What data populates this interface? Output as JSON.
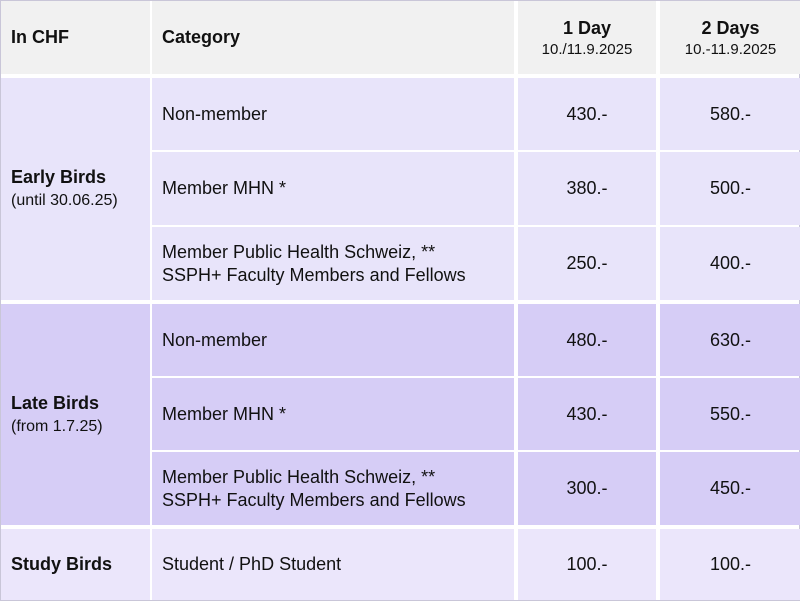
{
  "header": {
    "currency": "In CHF",
    "category": "Category",
    "day1_label": "1 Day",
    "day1_dates": "10./11.9.2025",
    "day2_label": "2 Days",
    "day2_dates": "10.-11.9.2025"
  },
  "groups": {
    "early": {
      "label": "Early Birds",
      "note": "(until 30.06.25)",
      "rows": [
        {
          "category": [
            "Non-member"
          ],
          "day1": "430.-",
          "day2": "580.-"
        },
        {
          "category": [
            "Member MHN *"
          ],
          "day1": "380.-",
          "day2": "500.-"
        },
        {
          "category": [
            "Member Public Health Schweiz, **",
            "SSPH+ Faculty Members and Fellows"
          ],
          "day1": "250.-",
          "day2": "400.-"
        }
      ]
    },
    "late": {
      "label": "Late Birds",
      "note": "(from 1.7.25)",
      "rows": [
        {
          "category": [
            "Non-member"
          ],
          "day1": "480.-",
          "day2": "630.-"
        },
        {
          "category": [
            "Member MHN *"
          ],
          "day1": "430.-",
          "day2": "550.-"
        },
        {
          "category": [
            "Member Public Health Schweiz, **",
            "SSPH+ Faculty Members and Fellows"
          ],
          "day1": "300.-",
          "day2": "450.-"
        }
      ]
    },
    "study": {
      "label": "Study Birds",
      "rows": [
        {
          "category": [
            "Student / PhD Student"
          ],
          "day1": "100.-",
          "day2": "100.-"
        }
      ]
    }
  },
  "colors": {
    "header_bg": "#f1f1f1",
    "early_bg": "#e8e4fa",
    "late_bg": "#d6cdf6",
    "study_bg": "#ebe6fb",
    "grid_line": "#ffffff"
  }
}
